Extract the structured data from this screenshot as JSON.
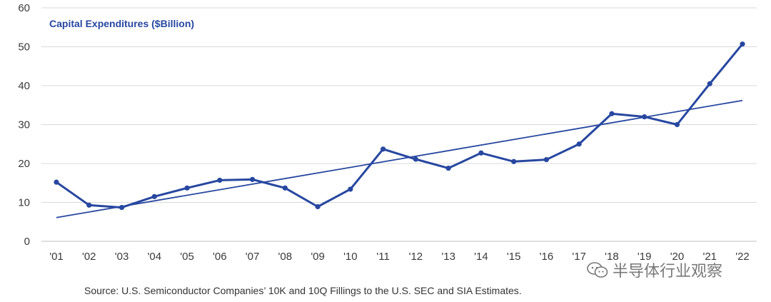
{
  "chart_data": {
    "type": "line",
    "title": "Capital Expenditures ($Billion)",
    "categories": [
      "'01",
      "'02",
      "'03",
      "'04",
      "'05",
      "'06",
      "'07",
      "'08",
      "'09",
      "'10",
      "'11",
      "'12",
      "'13",
      "'14",
      "'15",
      "'16",
      "'17",
      "'18",
      "'19",
      "'20",
      "'21",
      "'22"
    ],
    "series": [
      {
        "name": "Capital Expenditures",
        "values": [
          15.2,
          9.3,
          8.7,
          11.5,
          13.7,
          15.7,
          15.9,
          13.7,
          8.9,
          13.4,
          23.7,
          21.1,
          18.8,
          22.7,
          20.5,
          21.0,
          25.0,
          32.8,
          32.0,
          30.0,
          40.5,
          50.7
        ],
        "color": "#2747a0"
      },
      {
        "name": "Trend",
        "type": "linear-trend",
        "start": 6.1,
        "end": 36.2,
        "color": "#2747a0"
      }
    ],
    "yticks": [
      0,
      10,
      20,
      30,
      40,
      50,
      60
    ],
    "ylim": [
      0,
      60
    ],
    "grid": true,
    "xlabel": "",
    "ylabel": ""
  },
  "source_text": "Source: U.S. Semiconductor Companies’ 10K and 10Q Fillings to the U.S. SEC and SIA Estimates.",
  "watermark_text": "半导体行业观察",
  "colors": {
    "line": "#2747a0",
    "grid": "#d9d9d9",
    "axis": "#bfbfbf"
  }
}
